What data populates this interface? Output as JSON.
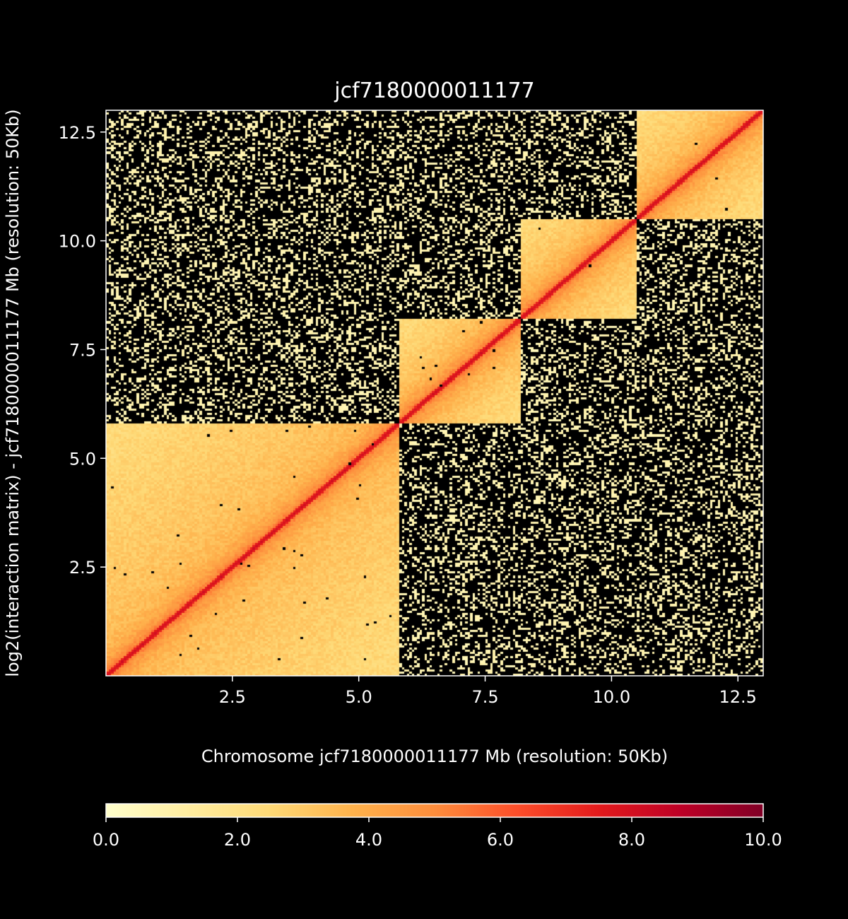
{
  "chart_data": {
    "type": "heatmap",
    "title": "jcf7180000011177",
    "xlabel": "Chromosome jcf7180000011177 Mb (resolution: 50Kb)",
    "ylabel": "log2(interaction matrix) - jcf7180000011177 Mb (resolution: 50Kb)",
    "x_range": [
      0,
      13.0
    ],
    "y_range": [
      0,
      13.0
    ],
    "x_ticks": [
      2.5,
      5.0,
      7.5,
      10.0,
      12.5
    ],
    "y_ticks": [
      2.5,
      5.0,
      7.5,
      10.0,
      12.5
    ],
    "x_tick_labels": [
      "2.5",
      "5.0",
      "7.5",
      "10.0",
      "12.5"
    ],
    "y_tick_labels": [
      "2.5",
      "5.0",
      "7.5",
      "10.0",
      "12.5"
    ],
    "resolution_mb": 0.05,
    "diagonal_blocks_mb": [
      [
        0,
        5.8
      ],
      [
        5.8,
        8.2
      ],
      [
        8.2,
        10.5
      ],
      [
        10.5,
        13.0
      ]
    ],
    "block_values": {
      "diagonal": 8.0,
      "near_diagonal": 5.5,
      "within_block": 3.5,
      "between_blocks_sparse": 0.5
    },
    "colorbar": {
      "range": [
        0,
        10
      ],
      "ticks": [
        0,
        2,
        4,
        6,
        8,
        10
      ],
      "tick_labels": [
        "0.0",
        "2.0",
        "4.0",
        "6.0",
        "8.0",
        "10.0"
      ],
      "colormap": [
        "#ffffcc",
        "#ffeda0",
        "#fed976",
        "#feb24c",
        "#fd8d3c",
        "#fc4e2a",
        "#e31a1c",
        "#bd0026",
        "#800026"
      ]
    }
  }
}
